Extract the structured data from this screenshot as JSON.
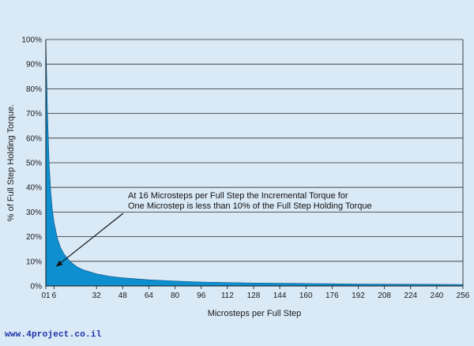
{
  "chart_data": {
    "type": "area",
    "title": "",
    "xlabel": "Microsteps per Full Step",
    "ylabel": "% of Full Step Holding Torque.",
    "x_ticks": [
      "01",
      "6",
      "32",
      "48",
      "64",
      "80",
      "96",
      "112",
      "128",
      "144",
      "160",
      "176",
      "192",
      "208",
      "224",
      "240",
      "256"
    ],
    "y_ticks": [
      "0%",
      "10%",
      "20%",
      "30%",
      "40%",
      "50%",
      "60%",
      "70%",
      "80%",
      "90%",
      "100%"
    ],
    "xlim": [
      1,
      256
    ],
    "ylim": [
      0,
      100
    ],
    "grid": true,
    "series": [
      {
        "color": "#0e8fcf",
        "x": [
          1,
          2,
          3,
          4,
          5,
          6,
          8,
          10,
          12,
          16,
          20,
          24,
          32,
          40,
          48,
          64,
          80,
          96,
          112,
          128,
          144,
          160,
          176,
          192,
          208,
          224,
          240,
          256
        ],
        "y": [
          100,
          70.7,
          50,
          38.3,
          30.9,
          25.9,
          19.5,
          15.6,
          13.1,
          9.8,
          7.8,
          6.5,
          4.9,
          3.9,
          3.3,
          2.5,
          2.0,
          1.6,
          1.4,
          1.2,
          1.1,
          1.0,
          0.9,
          0.8,
          0.75,
          0.7,
          0.65,
          0.6
        ]
      }
    ],
    "annotation": {
      "lines": [
        "At 16 Microsteps per Full Step the Incremental Torque for",
        "One Microstep is less than 10% of the Full Step Holding Torque"
      ],
      "points_to": {
        "x": 16,
        "y": 9.8
      }
    }
  },
  "footer": {
    "watermark": "www.4project.co.il"
  }
}
